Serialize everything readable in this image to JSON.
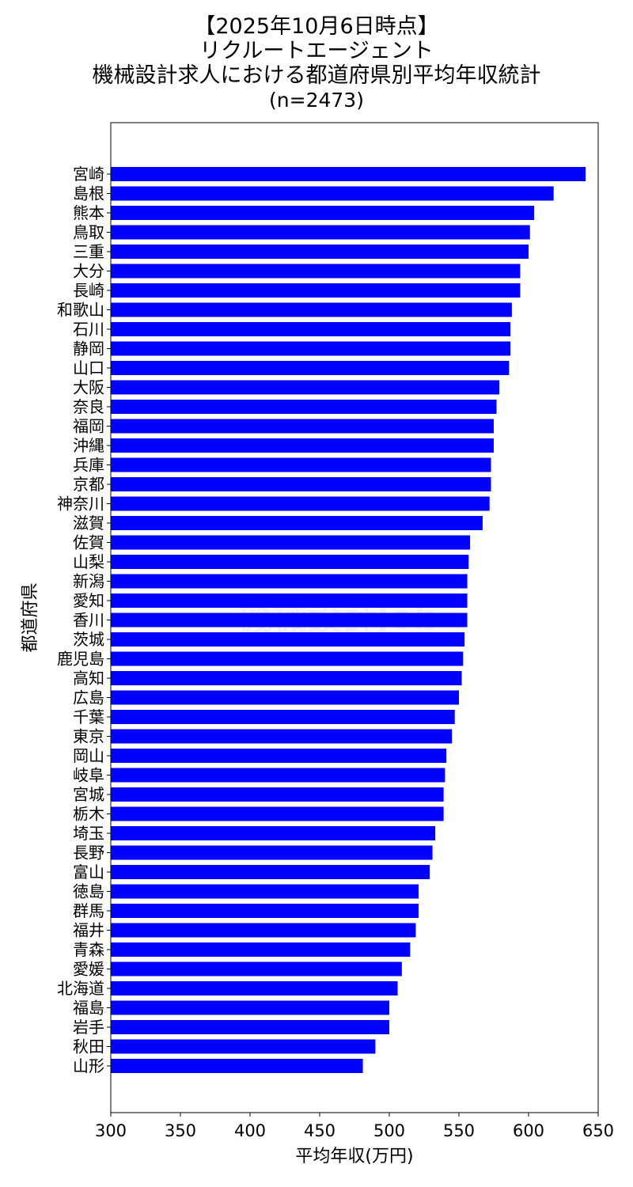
{
  "title_lines": [
    "【2025年10月6日時点】",
    "リクルートエージェント",
    "機械設計求人における都道府県別平均年収統計",
    "(n=2473)"
  ],
  "watermark": "機械設計Job",
  "chart_data": {
    "type": "bar",
    "orientation": "horizontal",
    "xlabel": "平均年収(万円)",
    "ylabel": "都道府県",
    "xlim": [
      300,
      650
    ],
    "xticks": [
      300,
      350,
      400,
      450,
      500,
      550,
      600,
      650
    ],
    "bar_color": "#0000ff",
    "grid": false,
    "categories": [
      "宮崎",
      "島根",
      "熊本",
      "鳥取",
      "三重",
      "大分",
      "長崎",
      "和歌山",
      "石川",
      "静岡",
      "山口",
      "大阪",
      "奈良",
      "福岡",
      "沖縄",
      "兵庫",
      "京都",
      "神奈川",
      "滋賀",
      "佐賀",
      "山梨",
      "新潟",
      "愛知",
      "香川",
      "茨城",
      "鹿児島",
      "高知",
      "広島",
      "千葉",
      "東京",
      "岡山",
      "岐阜",
      "宮城",
      "栃木",
      "埼玉",
      "長野",
      "富山",
      "徳島",
      "群馬",
      "福井",
      "青森",
      "愛媛",
      "北海道",
      "福島",
      "岩手",
      "秋田",
      "山形"
    ],
    "values": [
      641,
      618,
      604,
      601,
      600,
      594,
      594,
      588,
      587,
      587,
      586,
      579,
      577,
      575,
      575,
      573,
      573,
      572,
      567,
      558,
      557,
      556,
      556,
      556,
      554,
      553,
      552,
      550,
      547,
      545,
      541,
      540,
      539,
      539,
      533,
      531,
      529,
      521,
      521,
      519,
      515,
      509,
      506,
      500,
      500,
      490,
      481
    ]
  }
}
